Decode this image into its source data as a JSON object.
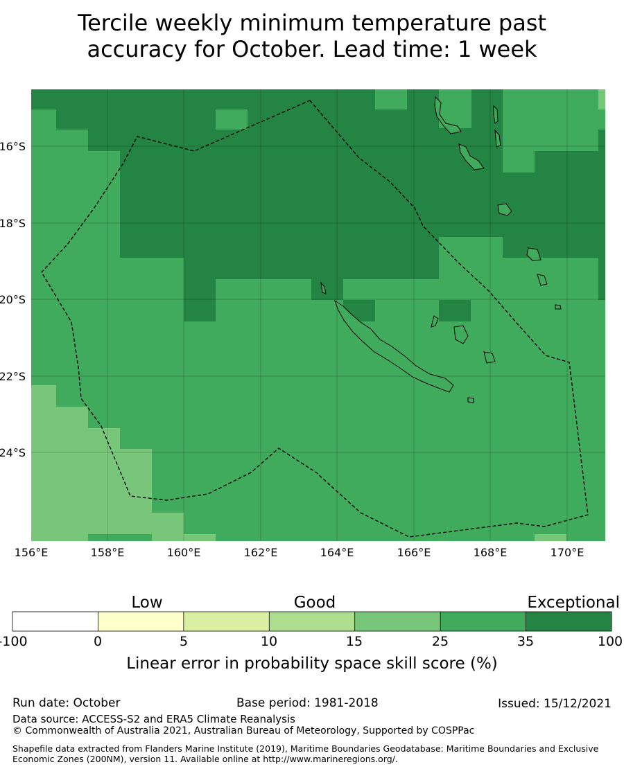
{
  "title_line1": "Tercile weekly minimum temperature past",
  "title_line2": "accuracy for October. Lead time: 1 week",
  "map": {
    "lon_range": [
      156,
      171
    ],
    "lat_range": [
      -26.2,
      -14.4
    ],
    "lon_ticks": [
      "156°E",
      "158°E",
      "160°E",
      "162°E",
      "164°E",
      "166°E",
      "168°E",
      "170°E"
    ],
    "lat_ticks": [
      "16°S",
      "18°S",
      "20°S",
      "22°S",
      "24°S"
    ],
    "colors": {
      "exceptional": "#238443",
      "good_high": "#41ab5d",
      "good_mid": "#78c679",
      "good_low": "#addd8e",
      "low_high": "#d9f0a3",
      "low": "#ffffcc",
      "neg": "#ffffff"
    }
  },
  "colorbar": {
    "categories": [
      "Low",
      "Good",
      "Exceptional"
    ],
    "ticks": [
      "-100",
      "0",
      "5",
      "10",
      "15",
      "25",
      "35",
      "100"
    ],
    "colors": [
      "#ffffff",
      "#ffffcc",
      "#d9f0a3",
      "#addd8e",
      "#78c679",
      "#41ab5d",
      "#238443"
    ],
    "label": "Linear error in probability space skill score (%)"
  },
  "footer": {
    "run_date": "Run date: October",
    "base_period": "Base period: 1981-2018",
    "issued": "Issued: 15/12/2021",
    "data_source": "Data source: ACCESS-S2 and ERA5 Climate Reanalysis",
    "copyright": "© Commonwealth of Australia 2021, Australian Bureau of Meteorology, Supported by COSPPac",
    "shapefile": "Shapefile data extracted from Flanders Marine Institute (2019), Maritime Boundaries Geodatabase: Maritime Boundaries and Exclusive Economic Zones (200NM), version 11. Available online at http://www.marineregions.org/."
  }
}
